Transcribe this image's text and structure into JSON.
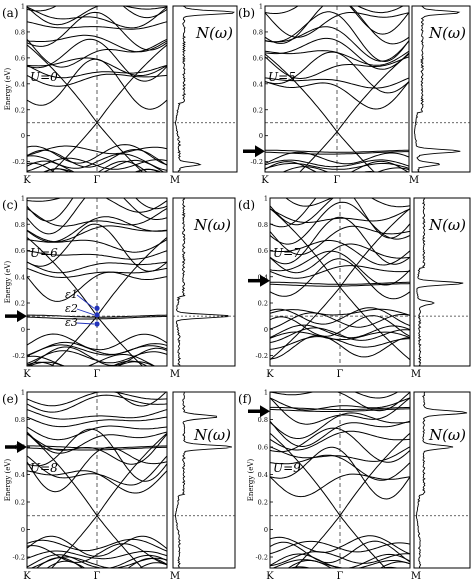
{
  "chart_data": [
    {
      "type": "line",
      "panel_label": "(a)",
      "U_label": "U=0",
      "dos_label": "N(ω)",
      "ylabel": "Energy (eV)",
      "ylim": [
        -0.28,
        1.0
      ],
      "ytick_values": [
        -0.2,
        0,
        0.2,
        0.4,
        0.6,
        0.8,
        1
      ],
      "ytick_labels": [
        "-0.2",
        "0",
        "0.2",
        "0.4",
        "0.6",
        "0.8",
        "1"
      ],
      "x_ticks": [
        "K",
        "Γ",
        "M"
      ],
      "fermi_level": 0.1,
      "dirac_energy": 0.1,
      "flat_band_energy": null,
      "arrow_energy": null,
      "dos_peaks": [
        {
          "energy": -0.22,
          "height": 0.35
        },
        {
          "energy": 0.95,
          "height": 0.9
        }
      ]
    },
    {
      "type": "line",
      "panel_label": "(b)",
      "U_label": "U=5",
      "dos_label": "N(ω)",
      "ylabel": "",
      "ylim": [
        -0.28,
        1.0
      ],
      "ytick_values": [
        -0.2,
        0,
        0.2,
        0.4,
        0.6,
        0.8,
        1
      ],
      "ytick_labels": [
        "-0.2",
        "0",
        "0.2",
        "0.4",
        "0.6",
        "0.8",
        "1"
      ],
      "x_ticks": [
        "K",
        "Γ",
        "M"
      ],
      "fermi_level": 0.1,
      "dirac_energy": 0.03,
      "flat_band_energy": -0.12,
      "arrow_energy": -0.12,
      "dos_peaks": [
        {
          "energy": -0.12,
          "height": 0.8
        },
        {
          "energy": -0.22,
          "height": 0.4
        },
        {
          "energy": 0.95,
          "height": 0.7
        }
      ]
    },
    {
      "type": "line",
      "panel_label": "(c)",
      "U_label": "U=6",
      "dos_label": "N(ω)",
      "ylabel": "Energy (eV)",
      "ylim": [
        -0.28,
        1.0
      ],
      "ytick_values": [
        -0.2,
        0,
        0.2,
        0.4,
        0.6,
        0.8,
        1
      ],
      "ytick_labels": [
        "-0.2",
        "0",
        "0.2",
        "0.4",
        "0.6",
        "0.8",
        "1"
      ],
      "x_ticks": [
        "K",
        "Γ",
        "M"
      ],
      "fermi_level": 0.1,
      "dirac_energy": 0.1,
      "flat_band_energy": 0.1,
      "arrow_energy": 0.1,
      "eps_labels": [
        "ε1",
        "ε2",
        "ε3"
      ],
      "eps_energies": [
        0.16,
        0.11,
        0.04
      ],
      "dos_peaks": [
        {
          "energy": 0.1,
          "height": 0.95
        }
      ]
    },
    {
      "type": "line",
      "panel_label": "(d)",
      "U_label": "U=7",
      "dos_label": "N(ω)",
      "ylabel": "",
      "ylim": [
        -0.28,
        1.0
      ],
      "ytick_values": [
        -0.2,
        0,
        0.2,
        0.4,
        0.6,
        0.8,
        1
      ],
      "ytick_labels": [
        "-0.2",
        "0",
        "0.2",
        "0.4",
        "0.6",
        "0.8",
        "1"
      ],
      "x_ticks": [
        "K",
        "Γ",
        "M"
      ],
      "fermi_level": 0.1,
      "dirac_energy": 0.32,
      "flat_band_energy": 0.35,
      "arrow_energy": 0.37,
      "dos_peaks": [
        {
          "energy": 0.35,
          "height": 0.9
        },
        {
          "energy": 0.2,
          "height": 0.3
        }
      ]
    },
    {
      "type": "line",
      "panel_label": "(e)",
      "U_label": "U=8",
      "dos_label": "N(ω)",
      "ylabel": "Energy (eV)",
      "ylim": [
        -0.28,
        1.0
      ],
      "ytick_values": [
        -0.2,
        0,
        0.2,
        0.4,
        0.6,
        0.8,
        1
      ],
      "ytick_labels": [
        "-0.2",
        "0",
        "0.2",
        "0.4",
        "0.6",
        "0.8",
        "1"
      ],
      "x_ticks": [
        "K",
        "Γ",
        "M"
      ],
      "fermi_level": 0.1,
      "dirac_energy": 0.1,
      "flat_band_energy": 0.6,
      "arrow_energy": 0.6,
      "dos_peaks": [
        {
          "energy": 0.6,
          "height": 0.9
        },
        {
          "energy": 0.82,
          "height": 0.6
        }
      ]
    },
    {
      "type": "line",
      "panel_label": "(f)",
      "U_label": "U=9",
      "dos_label": "N(ω)",
      "ylabel": "Energy (eV)",
      "ylim": [
        -0.28,
        1.0
      ],
      "ytick_values": [
        -0.2,
        0,
        0.2,
        0.4,
        0.6,
        0.8,
        1
      ],
      "ytick_labels": [
        "-0.2",
        "0",
        "0.2",
        "0.4",
        "0.6",
        "0.8",
        "1"
      ],
      "x_ticks": [
        "K",
        "Γ",
        "M"
      ],
      "fermi_level": 0.1,
      "dirac_energy": 0.1,
      "flat_band_energy": 0.88,
      "arrow_energy": 0.86,
      "dos_peaks": [
        {
          "energy": 0.85,
          "height": 0.85
        },
        {
          "energy": 0.6,
          "height": 0.55
        }
      ]
    }
  ],
  "colors": {
    "bands": "#000000",
    "grid": "#333333",
    "annotation": "#2233bb"
  }
}
